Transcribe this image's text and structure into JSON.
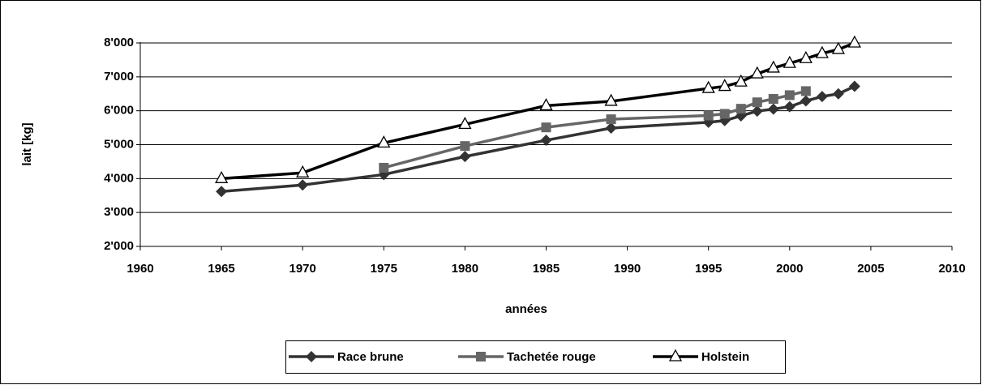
{
  "chart_data": {
    "type": "line",
    "xlabel": "années",
    "ylabel": "lait  [kg]",
    "xlim": [
      1960,
      2010
    ],
    "xticks": [
      1960,
      1965,
      1970,
      1975,
      1980,
      1985,
      1990,
      1995,
      2000,
      2005,
      2010
    ],
    "ylim": [
      2000,
      8000
    ],
    "yticks": [
      {
        "value": 2000,
        "label": "2'000"
      },
      {
        "value": 3000,
        "label": "3'000"
      },
      {
        "value": 4000,
        "label": "4'000"
      },
      {
        "value": 5000,
        "label": "5'000"
      },
      {
        "value": 6000,
        "label": "6'000"
      },
      {
        "value": 7000,
        "label": "7'000"
      },
      {
        "value": 8000,
        "label": "8'000"
      }
    ],
    "grid": true,
    "legend": "bottom",
    "series": [
      {
        "name": "Race brune",
        "color": "#333333",
        "marker": "diamond",
        "x": [
          1965,
          1970,
          1975,
          1980,
          1985,
          1989,
          1995,
          1996,
          1997,
          1998,
          1999,
          2000,
          2001,
          2002,
          2003,
          2004
        ],
        "values": [
          3620,
          3810,
          4120,
          4650,
          5130,
          5490,
          5660,
          5710,
          5850,
          5990,
          6050,
          6120,
          6290,
          6420,
          6500,
          6720
        ]
      },
      {
        "name": "Tachetée rouge",
        "color": "#666666",
        "marker": "square",
        "x": [
          1975,
          1980,
          1985,
          1989,
          1995,
          1996,
          1997,
          1998,
          1999,
          2000,
          2001
        ],
        "values": [
          4320,
          4960,
          5510,
          5750,
          5860,
          5910,
          6060,
          6250,
          6350,
          6460,
          6580
        ]
      },
      {
        "name": "Holstein",
        "color": "#000000",
        "marker": "triangle",
        "x": [
          1965,
          1970,
          1975,
          1980,
          1985,
          1989,
          1995,
          1996,
          1997,
          1998,
          1999,
          2000,
          2001,
          2002,
          2003,
          2004
        ],
        "values": [
          4000,
          4170,
          5050,
          5600,
          6150,
          6280,
          6660,
          6720,
          6850,
          7090,
          7260,
          7400,
          7540,
          7690,
          7810,
          8000
        ]
      }
    ]
  }
}
